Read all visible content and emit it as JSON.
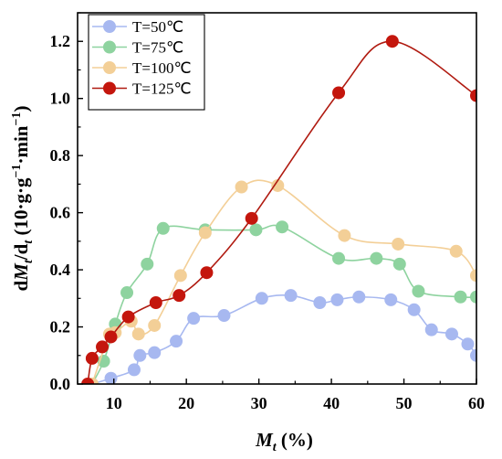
{
  "chart_data": {
    "type": "line",
    "xlabel_var": "M",
    "xlabel_sub": "t",
    "xlabel_rest": " (%)",
    "ylabel_parts": [
      "d",
      "M",
      "t",
      "/d",
      "t",
      " (10·g·g",
      "−1",
      "·min",
      "−1",
      ")"
    ],
    "xlim": [
      5,
      60
    ],
    "ylim": [
      0,
      1.3
    ],
    "xticks": [
      10,
      20,
      30,
      40,
      50,
      60
    ],
    "xtick_labels": [
      "10",
      "20",
      "30",
      "40",
      "50",
      "60"
    ],
    "yticks": [
      0,
      0.2,
      0.4,
      0.6,
      0.8,
      1.0,
      1.2
    ],
    "ytick_labels": [
      "0.0",
      "0.2",
      "0.4",
      "0.6",
      "0.8",
      "1.0",
      "1.2"
    ],
    "legend_position": "top-left",
    "grid": false,
    "series": [
      {
        "name": "T=50℃",
        "color": "#A7B8F0",
        "line_color": "#A7B8F0",
        "x": [
          7,
          9.6,
          12.8,
          13.6,
          15.6,
          18.6,
          21,
          25.2,
          30.4,
          34.4,
          38.4,
          40.8,
          43.8,
          48.2,
          51.4,
          53.8,
          56.6,
          58.8,
          60
        ],
        "y": [
          0.0,
          0.02,
          0.05,
          0.1,
          0.11,
          0.15,
          0.23,
          0.24,
          0.3,
          0.31,
          0.285,
          0.295,
          0.305,
          0.295,
          0.26,
          0.19,
          0.175,
          0.14,
          0.1
        ]
      },
      {
        "name": "T=75℃",
        "color": "#8ED39F",
        "line_color": "#8ED39F",
        "x": [
          7,
          8.6,
          10.2,
          11.8,
          14.6,
          16.8,
          22.6,
          29.6,
          33.2,
          41,
          46.2,
          49.4,
          52,
          57.8,
          60
        ],
        "y": [
          0.0,
          0.08,
          0.21,
          0.32,
          0.42,
          0.545,
          0.54,
          0.54,
          0.55,
          0.44,
          0.44,
          0.42,
          0.325,
          0.305,
          0.305
        ]
      },
      {
        "name": "T=100℃",
        "color": "#F3CF97",
        "line_color": "#F3CF97",
        "x": [
          7,
          9.4,
          10.2,
          12.4,
          13.4,
          15.6,
          19.2,
          22.6,
          27.6,
          32.6,
          41.8,
          49.2,
          57.2,
          60
        ],
        "y": [
          0.0,
          0.175,
          0.18,
          0.22,
          0.175,
          0.205,
          0.38,
          0.53,
          0.69,
          0.695,
          0.52,
          0.49,
          0.465,
          0.38
        ]
      },
      {
        "name": "T=125℃",
        "color": "#C4160D",
        "line_color": "#B01A10",
        "x": [
          6.4,
          7,
          8.4,
          9.6,
          12,
          15.8,
          19,
          22.8,
          29,
          41,
          48.4,
          60
        ],
        "y": [
          0.0,
          0.09,
          0.13,
          0.165,
          0.235,
          0.285,
          0.31,
          0.39,
          0.58,
          1.02,
          1.2,
          1.01
        ]
      }
    ]
  }
}
